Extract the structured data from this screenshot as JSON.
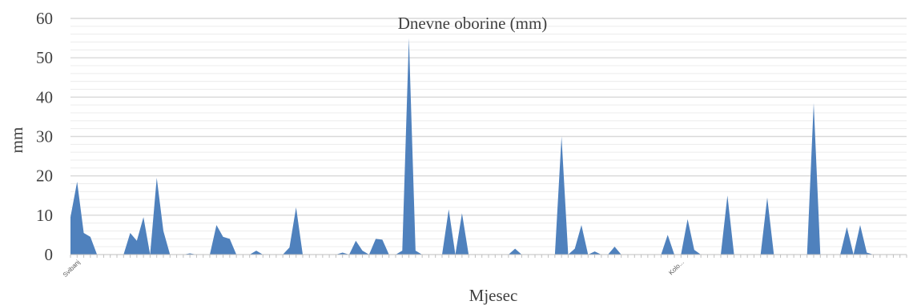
{
  "chart_data": {
    "type": "area",
    "title": "Dnevne oborine (mm)",
    "xlabel": "Mjesec",
    "ylabel": "mm",
    "ylim": [
      0,
      60
    ],
    "yticks": [
      0,
      10,
      20,
      30,
      40,
      50,
      60
    ],
    "grid": true,
    "legend": "none",
    "series_color": "#4f81bd",
    "x_tick_labels": [
      {
        "index": 1,
        "label": "Svibanj"
      },
      {
        "index": 92,
        "label": "Kolo..."
      }
    ],
    "series": [
      {
        "values": [
          9.5,
          18.5,
          5.5,
          4.5,
          0,
          0,
          0,
          0,
          0,
          5.5,
          3.5,
          9.5,
          0,
          19.5,
          6.0,
          0,
          0,
          0,
          0.3,
          0,
          0,
          0,
          7.5,
          4.5,
          4.0,
          0,
          0,
          0,
          1.0,
          0,
          0,
          0,
          0,
          1.8,
          12.0,
          0,
          0,
          0,
          0,
          0,
          0,
          0.5,
          0,
          3.5,
          1.0,
          0,
          4.0,
          3.8,
          0,
          0,
          1.0,
          55.0,
          1.0,
          0,
          0,
          0,
          0,
          11.5,
          0,
          10.5,
          0,
          0,
          0,
          0,
          0,
          0,
          0,
          1.5,
          0,
          0,
          0,
          0,
          0,
          0,
          30.0,
          0,
          1.5,
          7.5,
          0,
          0.8,
          0,
          0,
          2.0,
          0,
          0,
          0,
          0,
          0,
          0,
          0,
          5.0,
          0,
          0,
          9.0,
          1.2,
          0,
          0,
          0,
          0,
          15.0,
          0,
          0,
          0,
          0,
          0,
          14.5,
          0,
          0,
          0,
          0,
          0,
          0,
          38.5,
          0,
          0,
          0,
          0,
          7.0,
          0,
          7.5,
          0.5,
          0,
          0,
          0,
          0,
          0,
          0
        ]
      }
    ]
  }
}
